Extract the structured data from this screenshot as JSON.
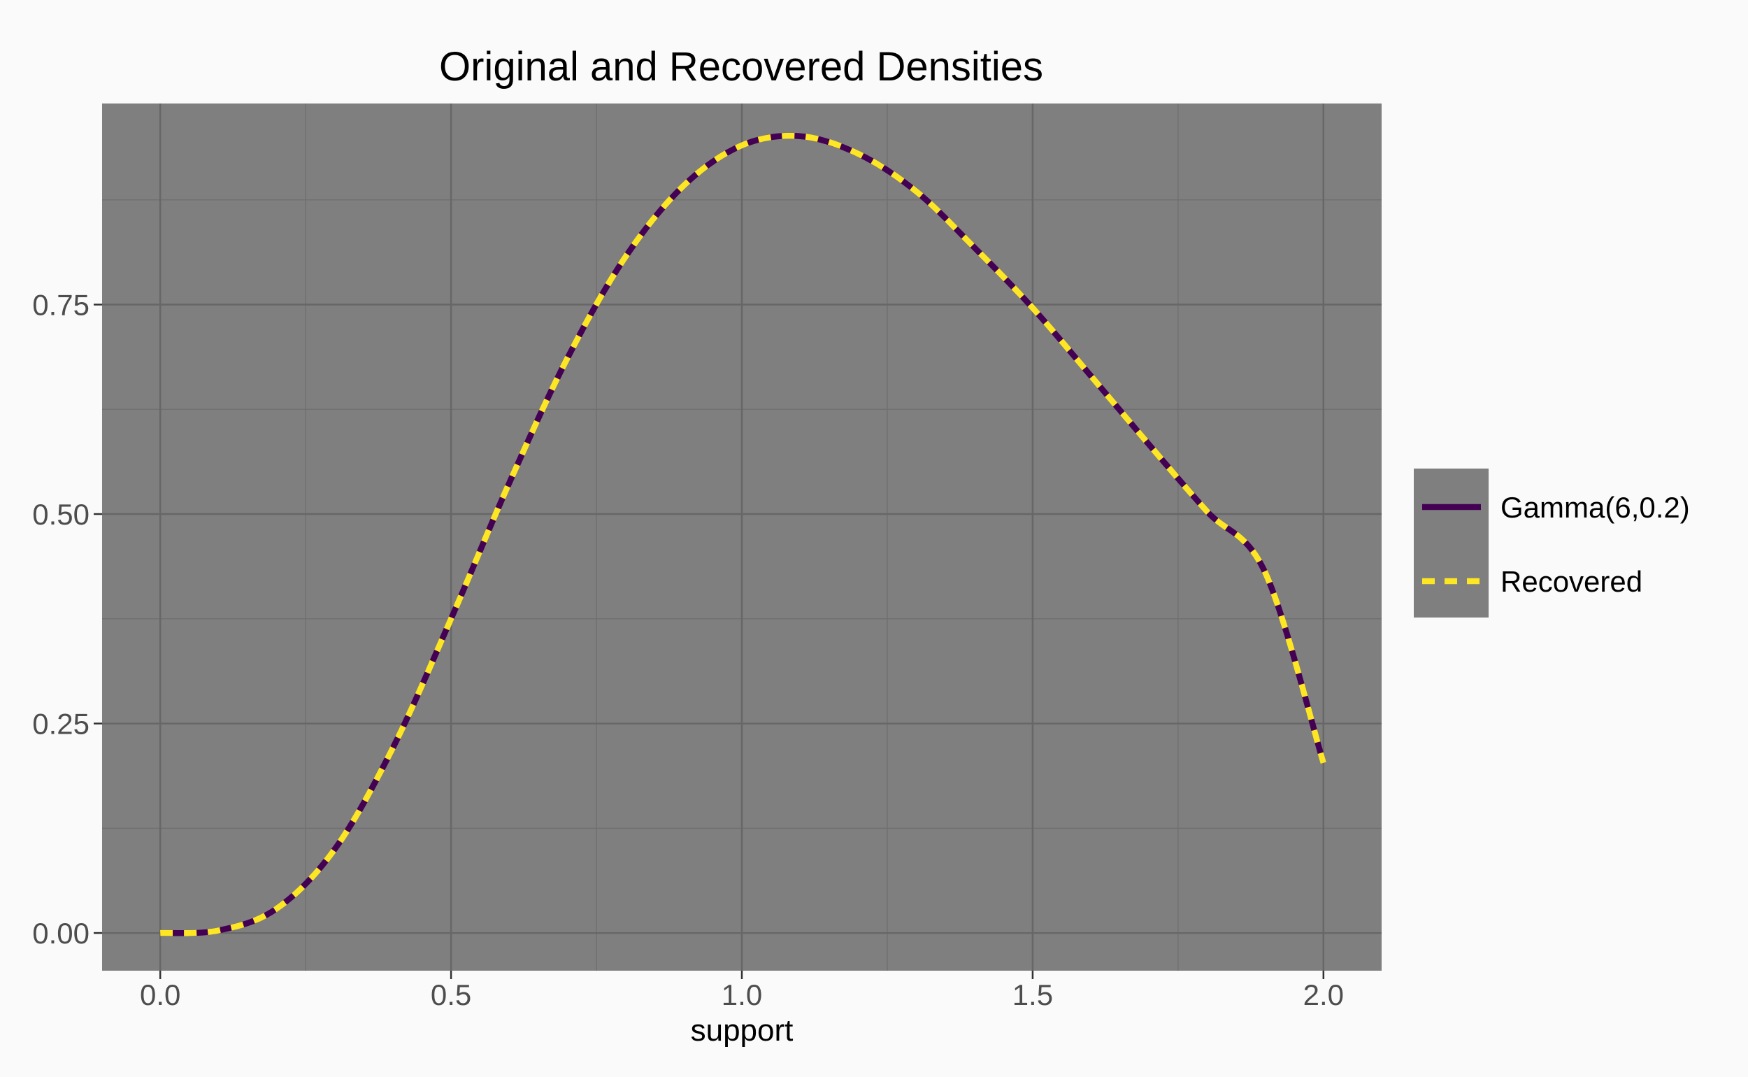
{
  "chart_data": {
    "type": "line",
    "title": "Original and Recovered Densities",
    "xlabel": "support",
    "ylabel": "",
    "xlim": [
      -0.1,
      2.1
    ],
    "ylim": [
      -0.045,
      0.99
    ],
    "x_ticks": [
      0.0,
      0.5,
      1.0,
      1.5,
      2.0
    ],
    "x_tick_labels": [
      "0.0",
      "0.5",
      "1.0",
      "1.5",
      "2.0"
    ],
    "y_ticks": [
      0.0,
      0.25,
      0.5,
      0.75
    ],
    "y_tick_labels": [
      "0.00",
      "0.25",
      "0.50",
      "0.75"
    ],
    "grid": true,
    "legend_position": "right",
    "x": [
      0.0,
      0.1,
      0.2,
      0.3,
      0.4,
      0.5,
      0.6,
      0.7,
      0.8,
      0.9,
      1.0,
      1.1,
      1.2,
      1.3,
      1.4,
      1.5,
      1.6,
      1.7,
      1.8,
      1.9,
      2.0
    ],
    "series": [
      {
        "name": "Gamma(6,0.2)",
        "color": "#440154",
        "style": "solid",
        "values": [
          0.0,
          0.003,
          0.029,
          0.1,
          0.221,
          0.375,
          0.537,
          0.686,
          0.807,
          0.892,
          0.94,
          0.951,
          0.93,
          0.885,
          0.818,
          0.746,
          0.665,
          0.583,
          0.503,
          0.43,
          0.203
        ]
      },
      {
        "name": "Recovered",
        "color": "#fde725",
        "style": "dashed",
        "values": [
          0.0,
          0.003,
          0.029,
          0.1,
          0.221,
          0.375,
          0.537,
          0.686,
          0.807,
          0.892,
          0.94,
          0.951,
          0.93,
          0.885,
          0.818,
          0.746,
          0.665,
          0.583,
          0.503,
          0.43,
          0.203
        ]
      }
    ]
  },
  "colors": {
    "panel_bg": "#7f7f7f",
    "grid_major": "#676767",
    "grid_minor": "#707070",
    "page_bg": "#fafafa"
  }
}
